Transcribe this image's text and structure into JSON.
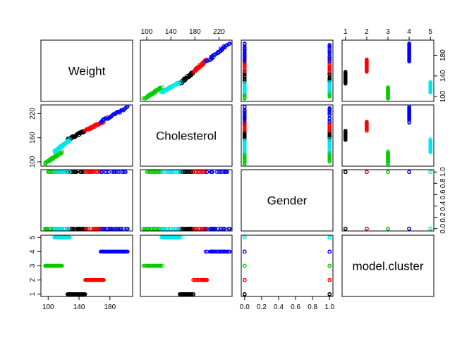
{
  "chart_data": {
    "type": "scatter",
    "subtype": "pairs-matrix",
    "variables": [
      "Weight",
      "Cholesterol",
      "Gender",
      "model.cluster"
    ],
    "ranges": {
      "Weight": [
        95,
        205
      ],
      "Cholesterol": [
        95,
        236
      ],
      "Gender": [
        0,
        1
      ],
      "model.cluster": [
        1,
        5
      ]
    },
    "tick_labels": {
      "Weight": [
        "100",
        "140",
        "180"
      ],
      "Cholesterol": [
        "100",
        "140",
        "180",
        "220"
      ],
      "Cholesterol_left": [
        "100",
        "160",
        "220"
      ],
      "Gender": [
        "0.0",
        "0.2",
        "0.4",
        "0.6",
        "0.8",
        "1.0"
      ],
      "model.cluster": [
        "1",
        "2",
        "3",
        "4",
        "5"
      ]
    },
    "cluster_colors": {
      "1": "#000000",
      "2": "#ff0000",
      "3": "#00cd00",
      "4": "#0000ff",
      "5": "#00e5ee"
    },
    "clusters": [
      {
        "cluster": 1,
        "weight_range": [
          125,
          148
        ],
        "cholesterol_range": [
          155,
          178
        ],
        "gender": [
          0,
          1
        ]
      },
      {
        "cluster": 2,
        "weight_range": [
          148,
          172
        ],
        "cholesterol_range": [
          178,
          200
        ],
        "gender": [
          0,
          1
        ]
      },
      {
        "cluster": 3,
        "weight_range": [
          96,
          118
        ],
        "cholesterol_range": [
          96,
          125
        ],
        "gender": [
          0,
          1
        ]
      },
      {
        "cluster": 4,
        "weight_range": [
          168,
          203
        ],
        "cholesterol_range": [
          200,
          235
        ],
        "gender": [
          0,
          1
        ]
      },
      {
        "cluster": 5,
        "weight_range": [
          108,
          128
        ],
        "cholesterol_range": [
          125,
          155
        ],
        "gender": [
          0,
          1
        ]
      }
    ],
    "grid": false,
    "legend": "none"
  }
}
